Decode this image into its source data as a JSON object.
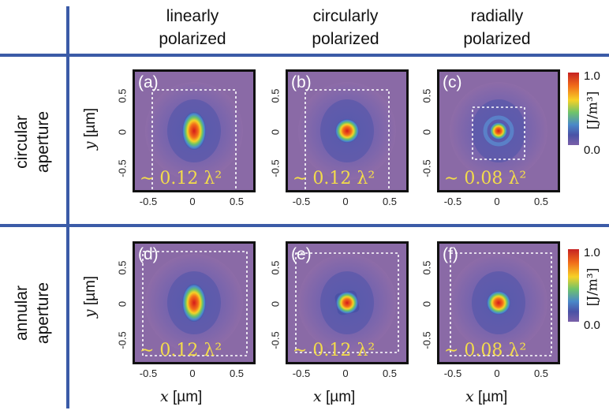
{
  "colors": {
    "rule": "#3b5ba7",
    "panel_background": "#8a6aa6",
    "area_text": "#f3dc4a",
    "label_text": "#ffffff"
  },
  "columns": [
    {
      "line1": "linearly",
      "line2": "polarized"
    },
    {
      "line1": "circularly",
      "line2": "polarized"
    },
    {
      "line1": "radially",
      "line2": "polarized"
    }
  ],
  "rows": [
    {
      "line1": "circular",
      "line2": "aperture"
    },
    {
      "line1": "annular",
      "line2": "aperture"
    }
  ],
  "panels": [
    {
      "label": "(a)",
      "area": "∼ 0.12 λ²",
      "spot": "elongated"
    },
    {
      "label": "(b)",
      "area": "∼ 0.12 λ²",
      "spot": "round"
    },
    {
      "label": "(c)",
      "area": "∼ 0.08 λ²",
      "spot": "ringed"
    },
    {
      "label": "(d)",
      "area": "∼ 0.12 λ²",
      "spot": "elongated"
    },
    {
      "label": "(e)",
      "area": "∼ 0.12 λ²",
      "spot": "square"
    },
    {
      "label": "(f)",
      "area": "∼ 0.08 λ²",
      "spot": "round"
    }
  ],
  "axes": {
    "ticks": [
      "-0.5",
      "0",
      "0.5"
    ],
    "y_label_var": "y",
    "x_label_var": "x",
    "unit": "[µm]"
  },
  "colorbar": {
    "max": "1.0",
    "min": "0.0",
    "unit": "[J/m³]"
  }
}
